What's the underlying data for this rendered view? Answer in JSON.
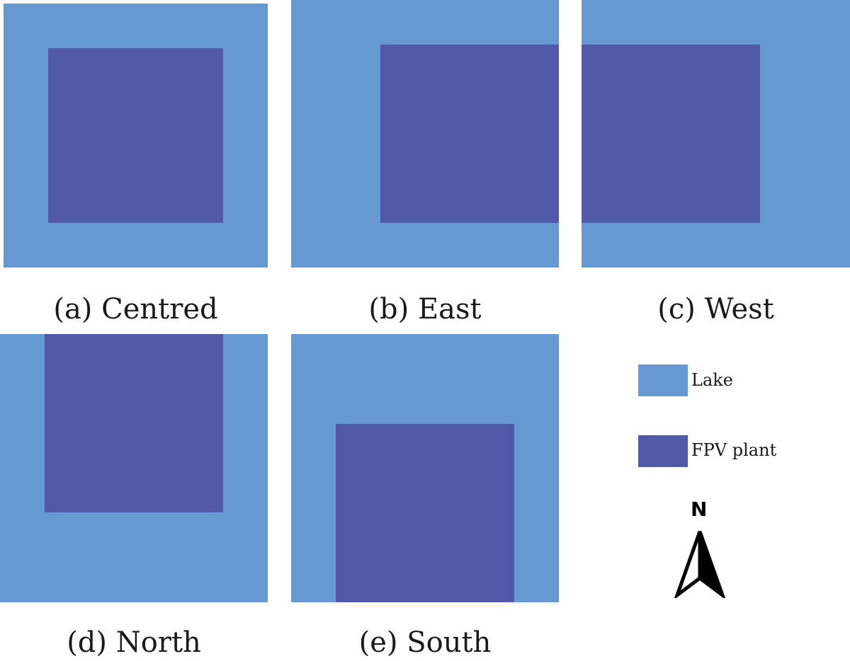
{
  "colors": {
    "lake": "#6699d2",
    "fpv_plant": "#515aa9"
  },
  "panels": {
    "centred": {
      "caption": "(a) Centred"
    },
    "east": {
      "caption": "(b) East"
    },
    "west": {
      "caption": "(c) West"
    },
    "north": {
      "caption": "(d) North"
    },
    "south": {
      "caption": "(e) South"
    }
  },
  "legend": {
    "lake_label": "Lake",
    "fpv_label": "FPV plant"
  },
  "north_arrow": {
    "letter": "N",
    "icon": "north-arrow-icon"
  }
}
